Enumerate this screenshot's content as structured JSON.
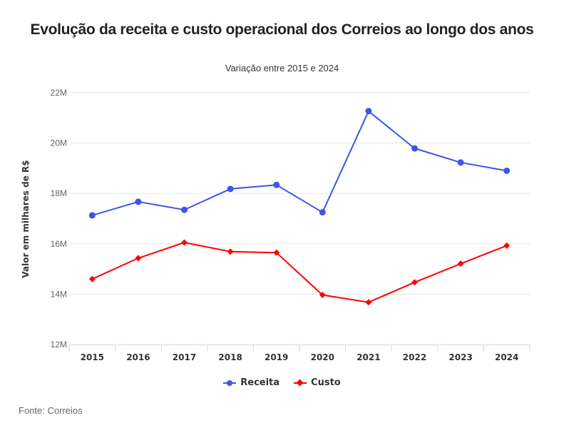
{
  "chart_data": {
    "type": "line",
    "title": "Evolução da receita e custo operacional dos Correios ao longo dos anos",
    "subtitle": "Variação entre 2015 e 2024",
    "xlabel": "",
    "ylabel": "Valor em milhares de R$",
    "categories": [
      "2015",
      "2016",
      "2017",
      "2018",
      "2019",
      "2020",
      "2021",
      "2022",
      "2023",
      "2024"
    ],
    "ylim": [
      12000000,
      22000000
    ],
    "yticks": [
      12000000,
      14000000,
      16000000,
      18000000,
      20000000,
      22000000
    ],
    "ytick_labels": [
      "12M",
      "14M",
      "16M",
      "18M",
      "20M",
      "22M"
    ],
    "grid": true,
    "legend_position": "bottom-center",
    "series": [
      {
        "name": "Receita",
        "color": "#3d55e8",
        "marker": "circle",
        "values": [
          17130000,
          17670000,
          17350000,
          18180000,
          18340000,
          17250000,
          21270000,
          19790000,
          19230000,
          18900000
        ]
      },
      {
        "name": "Custo",
        "color": "#ff0000",
        "marker": "diamond",
        "values": [
          14600000,
          15430000,
          16050000,
          15690000,
          15650000,
          13970000,
          13680000,
          14470000,
          15210000,
          15930000
        ]
      }
    ],
    "source": "Fonte: Correios"
  }
}
